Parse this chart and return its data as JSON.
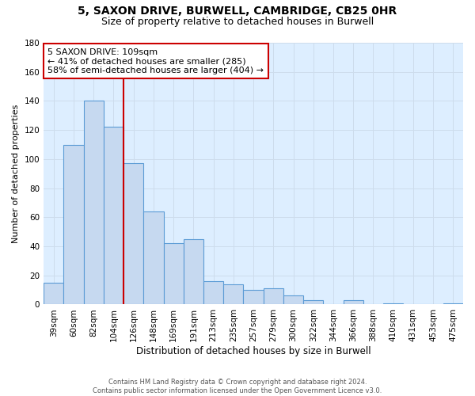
{
  "title1": "5, SAXON DRIVE, BURWELL, CAMBRIDGE, CB25 0HR",
  "title2": "Size of property relative to detached houses in Burwell",
  "xlabel": "Distribution of detached houses by size in Burwell",
  "ylabel": "Number of detached properties",
  "bar_labels": [
    "39sqm",
    "60sqm",
    "82sqm",
    "104sqm",
    "126sqm",
    "148sqm",
    "169sqm",
    "191sqm",
    "213sqm",
    "235sqm",
    "257sqm",
    "279sqm",
    "300sqm",
    "322sqm",
    "344sqm",
    "366sqm",
    "388sqm",
    "410sqm",
    "431sqm",
    "453sqm",
    "475sqm"
  ],
  "bar_values": [
    15,
    110,
    140,
    122,
    97,
    64,
    42,
    45,
    16,
    14,
    10,
    11,
    6,
    3,
    0,
    3,
    0,
    1,
    0,
    0,
    1
  ],
  "bar_color": "#c6d9f0",
  "bar_edgecolor": "#5b9bd5",
  "vline_color": "#cc0000",
  "vline_xindex": 3.5,
  "annotation_line1": "5 SAXON DRIVE: 109sqm",
  "annotation_line2": "← 41% of detached houses are smaller (285)",
  "annotation_line3": "58% of semi-detached houses are larger (404) →",
  "annotation_box_edgecolor": "#cc0000",
  "annotation_box_facecolor": "#ffffff",
  "ylim": [
    0,
    180
  ],
  "yticks": [
    0,
    20,
    40,
    60,
    80,
    100,
    120,
    140,
    160,
    180
  ],
  "grid_color": "#cddcec",
  "footer1": "Contains HM Land Registry data © Crown copyright and database right 2024.",
  "footer2": "Contains public sector information licensed under the Open Government Licence v3.0.",
  "plot_bg_color": "#ddeeff",
  "fig_bg_color": "#ffffff",
  "title1_fontsize": 10,
  "title2_fontsize": 9,
  "xlabel_fontsize": 8.5,
  "ylabel_fontsize": 8,
  "tick_fontsize": 7.5,
  "annotation_fontsize": 8
}
